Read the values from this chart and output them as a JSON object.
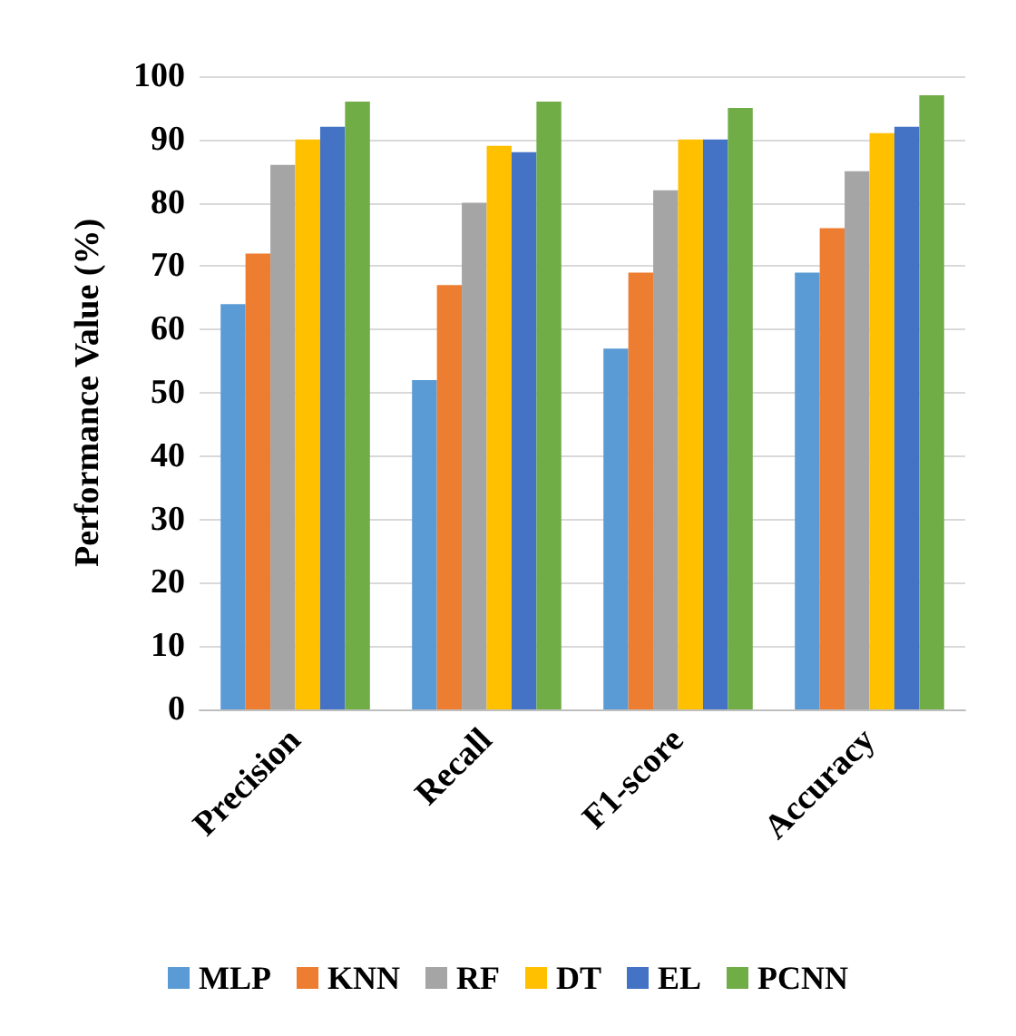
{
  "chart_data": {
    "type": "bar",
    "ylabel": "Performance Value (%)",
    "categories": [
      "Precision",
      "Recall",
      "F1-score",
      "Accuracy"
    ],
    "series": [
      {
        "name": "MLP",
        "color": "#5b9bd5",
        "values": [
          64,
          52,
          57,
          69
        ]
      },
      {
        "name": "KNN",
        "color": "#ed7d31",
        "values": [
          72,
          67,
          69,
          76
        ]
      },
      {
        "name": "RF",
        "color": "#a5a5a5",
        "values": [
          86,
          80,
          82,
          85
        ]
      },
      {
        "name": "DT",
        "color": "#ffc000",
        "values": [
          90,
          89,
          90,
          91
        ]
      },
      {
        "name": "EL",
        "color": "#4472c4",
        "values": [
          92,
          88,
          90,
          92
        ]
      },
      {
        "name": "PCNN",
        "color": "#70ad47",
        "values": [
          96,
          96,
          95,
          97
        ]
      }
    ],
    "ylim": [
      0,
      100
    ],
    "yticks": [
      0,
      10,
      20,
      30,
      40,
      50,
      60,
      70,
      80,
      90,
      100
    ],
    "grid": "y",
    "legend": "bottom"
  }
}
